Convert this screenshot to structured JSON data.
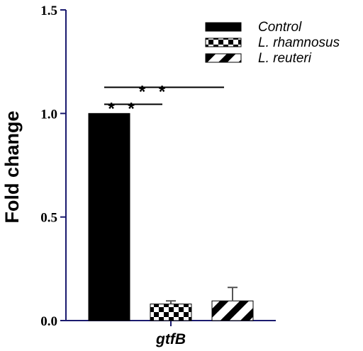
{
  "chart_data": {
    "type": "bar",
    "title": "",
    "xlabel": "",
    "ylabel": "Fold change",
    "ylim": [
      0,
      1.5
    ],
    "yticks": [
      "0.0",
      "0.5",
      "1.0",
      "1.5"
    ],
    "categories": [
      "gtfB"
    ],
    "series": [
      {
        "name": "Control",
        "values": [
          1.0
        ],
        "error": [
          0.0
        ],
        "pattern": "solid"
      },
      {
        "name": "L. rhamnosus",
        "values": [
          0.08
        ],
        "error": [
          0.015
        ],
        "pattern": "checker"
      },
      {
        "name": "L. reuteri",
        "values": [
          0.095
        ],
        "error": [
          0.065
        ],
        "pattern": "diagonal"
      }
    ],
    "significance": [
      {
        "label": "* *",
        "from": "Control",
        "to": "L. reuteri"
      },
      {
        "label": "* *",
        "from": "Control",
        "to": "L. rhamnosus"
      }
    ],
    "legend_position": "top-right",
    "grid": false,
    "colors": {
      "bar": "#000000",
      "axis": "#1a1a6e",
      "error": "#555555"
    }
  }
}
